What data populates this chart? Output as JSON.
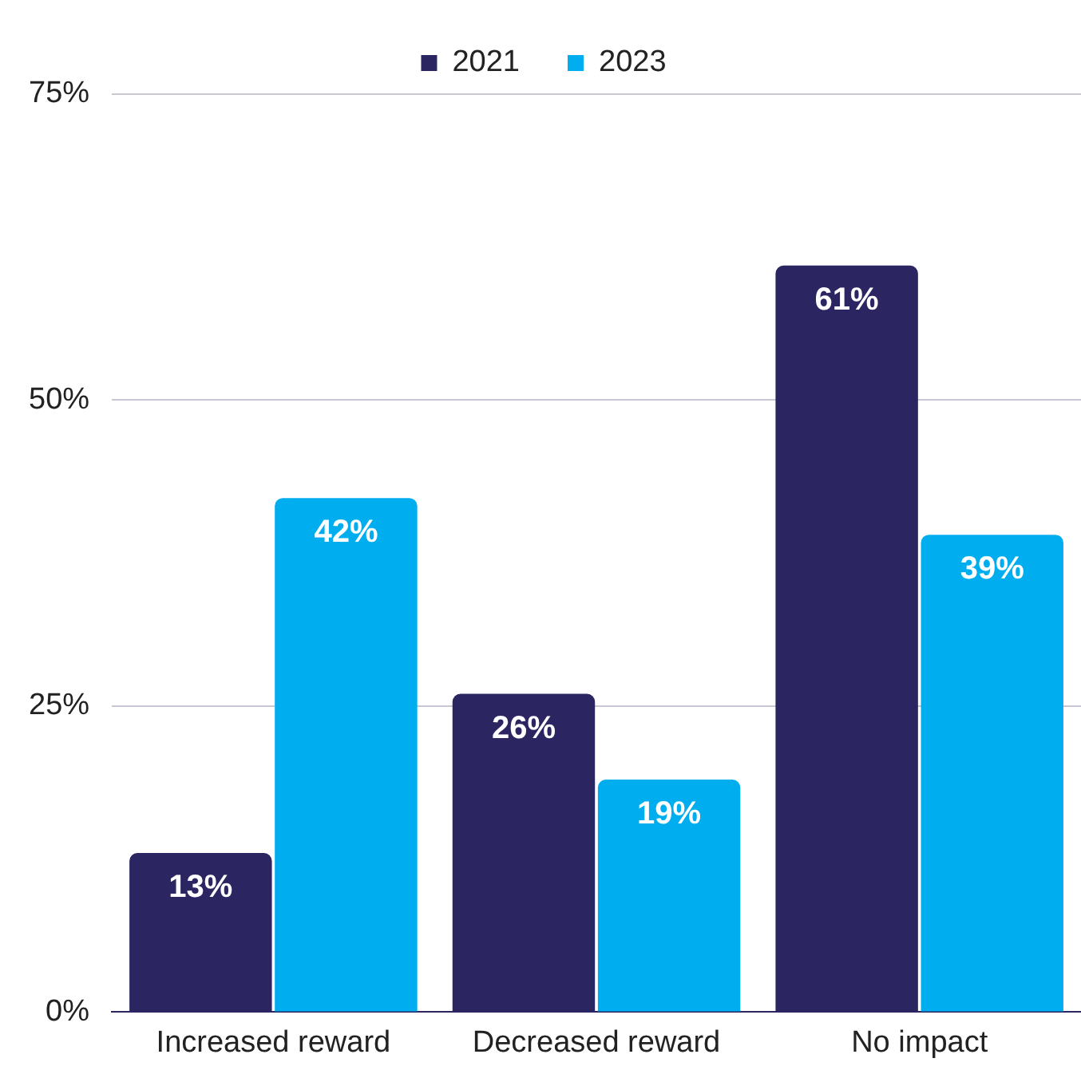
{
  "chart_data": {
    "type": "bar",
    "categories": [
      "Increased reward",
      "Decreased reward",
      "No impact"
    ],
    "series": [
      {
        "name": "2021",
        "color": "#2b2661",
        "values": [
          13,
          26,
          61
        ]
      },
      {
        "name": "2023",
        "color": "#00aeef",
        "values": [
          42,
          19,
          39
        ]
      }
    ],
    "ylim": [
      0,
      75
    ],
    "yticks": [
      {
        "value": 0,
        "label": "0%"
      },
      {
        "value": 25,
        "label": "25%"
      },
      {
        "value": 50,
        "label": "50%"
      },
      {
        "value": 75,
        "label": "75%"
      }
    ],
    "grid": "y",
    "legend": "top",
    "value_labels": [
      [
        "13%",
        "26%",
        "61%"
      ],
      [
        "42%",
        "19%",
        "39%"
      ]
    ]
  }
}
